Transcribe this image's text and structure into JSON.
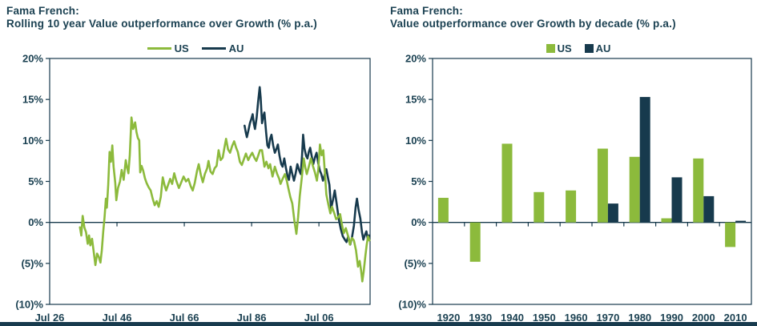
{
  "colors": {
    "us_green": "#8cba3c",
    "au_navy": "#173a4d",
    "text_navy": "#1b4152",
    "frame": "#173a4d",
    "strip": "#173a4d"
  },
  "charts": [
    {
      "title_line1": "Fama French:",
      "title_line2": "Rolling 10 year Value outperformance over Growth (% p.a.)",
      "legend": [
        {
          "name": "US"
        },
        {
          "name": "AU"
        }
      ]
    },
    {
      "title_line1": "Fama French:",
      "title_line2": "Value outperformance over Growth by decade (% p.a.)",
      "legend": [
        {
          "name": "US"
        },
        {
          "name": "AU"
        }
      ]
    }
  ],
  "chart_data": [
    {
      "type": "line",
      "title": "Fama French: Rolling 10 year Value outperformance over Growth (% p.a.)",
      "ylabel": "% p.a.",
      "ylim": [
        -10,
        20
      ],
      "y_ticks": {
        "labels": [
          "20%",
          "15%",
          "10%",
          "5%",
          "0%",
          "(5)%",
          "(10)%"
        ],
        "values": [
          20,
          15,
          10,
          5,
          0,
          -5,
          -10
        ]
      },
      "x_range": [
        1926.5,
        2021.7
      ],
      "x_ticks": {
        "labels": [
          "Jul 26",
          "Jul 46",
          "Jul 66",
          "Jul 86",
          "Jul 06"
        ],
        "years": [
          1926.5,
          1946.5,
          1966.5,
          1986.5,
          2006.5
        ]
      },
      "grid": false,
      "legend_position": "top",
      "series": [
        {
          "name": "AU",
          "color_key": "au_navy",
          "points": [
            [
              1984.4,
              11.8
            ],
            [
              1984.8,
              10.9
            ],
            [
              1985.1,
              10.4
            ],
            [
              1985.6,
              11.3
            ],
            [
              1986.0,
              12.1
            ],
            [
              1986.4,
              12.6
            ],
            [
              1986.8,
              13.2
            ],
            [
              1987.2,
              12.0
            ],
            [
              1987.5,
              11.4
            ],
            [
              1988.0,
              12.8
            ],
            [
              1988.4,
              14.6
            ],
            [
              1988.9,
              16.5
            ],
            [
              1989.2,
              15.2
            ],
            [
              1989.6,
              12.1
            ],
            [
              1990.0,
              13.0
            ],
            [
              1990.3,
              13.4
            ],
            [
              1990.8,
              11.0
            ],
            [
              1991.2,
              9.4
            ],
            [
              1991.6,
              9.1
            ],
            [
              1992.0,
              10.2
            ],
            [
              1992.4,
              10.7
            ],
            [
              1992.9,
              9.4
            ],
            [
              1993.4,
              8.5
            ],
            [
              1993.9,
              9.0
            ],
            [
              1994.3,
              9.5
            ],
            [
              1994.8,
              8.1
            ],
            [
              1995.3,
              7.1
            ],
            [
              1995.7,
              6.8
            ],
            [
              1996.2,
              7.8
            ],
            [
              1996.7,
              6.6
            ],
            [
              1997.2,
              5.6
            ],
            [
              1997.6,
              5.2
            ],
            [
              1998.1,
              6.8
            ],
            [
              1998.6,
              5.9
            ],
            [
              1999.1,
              5.1
            ],
            [
              1999.6,
              6.0
            ],
            [
              2000.1,
              7.1
            ],
            [
              2000.6,
              6.4
            ],
            [
              2001.1,
              5.9
            ],
            [
              2001.5,
              8.2
            ],
            [
              2001.8,
              10.7
            ],
            [
              2002.2,
              9.0
            ],
            [
              2002.7,
              8.1
            ],
            [
              2003.1,
              7.8
            ],
            [
              2003.5,
              8.6
            ],
            [
              2003.9,
              9.1
            ],
            [
              2004.4,
              8.0
            ],
            [
              2004.8,
              7.1
            ],
            [
              2005.3,
              7.9
            ],
            [
              2005.8,
              8.5
            ],
            [
              2006.3,
              7.2
            ],
            [
              2006.8,
              6.3
            ],
            [
              2007.2,
              5.9
            ],
            [
              2007.7,
              5.1
            ],
            [
              2008.2,
              5.8
            ],
            [
              2008.7,
              6.5
            ],
            [
              2009.2,
              5.4
            ],
            [
              2009.6,
              4.6
            ],
            [
              2010.1,
              1.7
            ],
            [
              2010.7,
              2.8
            ],
            [
              2011.2,
              3.9
            ],
            [
              2011.8,
              2.2
            ],
            [
              2012.4,
              0.4
            ],
            [
              2013.0,
              -0.8
            ],
            [
              2013.6,
              -1.7
            ],
            [
              2014.2,
              -2.1
            ],
            [
              2014.7,
              -2.4
            ],
            [
              2015.2,
              -1.7
            ],
            [
              2015.8,
              -2.7
            ],
            [
              2016.3,
              -1.9
            ],
            [
              2016.9,
              -0.4
            ],
            [
              2017.4,
              1.8
            ],
            [
              2017.8,
              2.9
            ],
            [
              2018.3,
              1.5
            ],
            [
              2018.8,
              0.5
            ],
            [
              2019.3,
              -1.2
            ],
            [
              2019.7,
              -2.1
            ],
            [
              2020.2,
              -1.5
            ],
            [
              2020.6,
              -1.1
            ],
            [
              2021.0,
              -2.0
            ],
            [
              2021.4,
              -1.6
            ]
          ]
        },
        {
          "name": "US",
          "color_key": "us_green",
          "points": [
            [
              1935.5,
              -0.6
            ],
            [
              1935.9,
              -1.6
            ],
            [
              1936.3,
              0.8
            ],
            [
              1936.8,
              -0.6
            ],
            [
              1937.3,
              -1.2
            ],
            [
              1937.8,
              -2.6
            ],
            [
              1938.2,
              -1.6
            ],
            [
              1938.6,
              -2.8
            ],
            [
              1939.1,
              -2.0
            ],
            [
              1939.6,
              -3.6
            ],
            [
              1940.1,
              -5.2
            ],
            [
              1940.6,
              -3.8
            ],
            [
              1941.1,
              -4.2
            ],
            [
              1941.6,
              -4.9
            ],
            [
              1942.0,
              -3.4
            ],
            [
              1942.4,
              -1.2
            ],
            [
              1942.8,
              0.6
            ],
            [
              1943.2,
              2.9
            ],
            [
              1943.5,
              1.8
            ],
            [
              1943.9,
              4.6
            ],
            [
              1944.3,
              8.6
            ],
            [
              1944.7,
              7.4
            ],
            [
              1945.1,
              9.4
            ],
            [
              1945.5,
              6.8
            ],
            [
              1946.0,
              4.8
            ],
            [
              1946.3,
              2.7
            ],
            [
              1946.8,
              4.2
            ],
            [
              1947.4,
              5.0
            ],
            [
              1947.9,
              6.4
            ],
            [
              1948.5,
              5.2
            ],
            [
              1949.1,
              7.6
            ],
            [
              1949.5,
              6.7
            ],
            [
              1949.9,
              6.0
            ],
            [
              1950.3,
              8.2
            ],
            [
              1950.8,
              12.8
            ],
            [
              1951.3,
              11.4
            ],
            [
              1951.9,
              12.2
            ],
            [
              1952.3,
              11.0
            ],
            [
              1952.7,
              10.3
            ],
            [
              1953.1,
              10.0
            ],
            [
              1953.4,
              6.1
            ],
            [
              1953.8,
              6.9
            ],
            [
              1954.3,
              6.3
            ],
            [
              1954.8,
              5.4
            ],
            [
              1955.3,
              4.8
            ],
            [
              1955.9,
              4.3
            ],
            [
              1956.5,
              3.9
            ],
            [
              1957.1,
              2.9
            ],
            [
              1957.7,
              2.1
            ],
            [
              1958.3,
              2.6
            ],
            [
              1958.9,
              1.9
            ],
            [
              1959.5,
              3.1
            ],
            [
              1960.1,
              5.5
            ],
            [
              1960.6,
              4.6
            ],
            [
              1961.1,
              3.9
            ],
            [
              1961.7,
              4.6
            ],
            [
              1962.3,
              5.3
            ],
            [
              1962.9,
              4.7
            ],
            [
              1963.5,
              6.0
            ],
            [
              1964.1,
              5.1
            ],
            [
              1964.9,
              4.2
            ],
            [
              1965.6,
              4.9
            ],
            [
              1966.3,
              5.6
            ],
            [
              1967.0,
              5.0
            ],
            [
              1967.7,
              5.3
            ],
            [
              1968.4,
              4.4
            ],
            [
              1969.0,
              3.9
            ],
            [
              1969.6,
              4.8
            ],
            [
              1970.3,
              6.3
            ],
            [
              1970.8,
              7.1
            ],
            [
              1971.4,
              5.8
            ],
            [
              1972.0,
              4.9
            ],
            [
              1972.6,
              5.9
            ],
            [
              1973.3,
              6.6
            ],
            [
              1973.7,
              7.5
            ],
            [
              1974.3,
              6.2
            ],
            [
              1974.9,
              5.9
            ],
            [
              1975.5,
              6.6
            ],
            [
              1976.1,
              6.9
            ],
            [
              1976.7,
              8.8
            ],
            [
              1977.3,
              7.6
            ],
            [
              1977.9,
              7.9
            ],
            [
              1978.5,
              9.3
            ],
            [
              1978.9,
              10.2
            ],
            [
              1979.5,
              8.9
            ],
            [
              1980.1,
              8.5
            ],
            [
              1980.7,
              9.3
            ],
            [
              1981.3,
              9.9
            ],
            [
              1981.9,
              9.1
            ],
            [
              1982.4,
              8.6
            ],
            [
              1983.0,
              7.4
            ],
            [
              1983.6,
              7.0
            ],
            [
              1984.2,
              7.7
            ],
            [
              1984.8,
              8.4
            ],
            [
              1985.5,
              7.6
            ],
            [
              1986.1,
              8.1
            ],
            [
              1986.7,
              8.5
            ],
            [
              1987.3,
              7.9
            ],
            [
              1987.9,
              7.5
            ],
            [
              1988.5,
              8.2
            ],
            [
              1989.0,
              8.8
            ],
            [
              1989.6,
              8.8
            ],
            [
              1990.3,
              6.8
            ],
            [
              1990.9,
              7.4
            ],
            [
              1991.5,
              6.6
            ],
            [
              1992.0,
              7.1
            ],
            [
              1992.7,
              5.6
            ],
            [
              1993.4,
              6.8
            ],
            [
              1994.1,
              5.9
            ],
            [
              1994.7,
              5.3
            ],
            [
              1995.1,
              4.7
            ],
            [
              1995.8,
              5.4
            ],
            [
              1996.4,
              5.9
            ],
            [
              1997.0,
              5.0
            ],
            [
              1997.4,
              4.2
            ],
            [
              1998.0,
              3.1
            ],
            [
              1998.6,
              2.3
            ],
            [
              1999.2,
              0.2
            ],
            [
              1999.8,
              -1.4
            ],
            [
              2000.3,
              0.6
            ],
            [
              2000.8,
              3.2
            ],
            [
              2001.4,
              5.4
            ],
            [
              2002.0,
              7.8
            ],
            [
              2002.5,
              6.6
            ],
            [
              2002.9,
              5.9
            ],
            [
              2003.5,
              6.8
            ],
            [
              2004.1,
              7.8
            ],
            [
              2004.7,
              6.9
            ],
            [
              2005.3,
              6.1
            ],
            [
              2005.9,
              5.1
            ],
            [
              2006.3,
              6.4
            ],
            [
              2006.8,
              9.5
            ],
            [
              2007.3,
              8.2
            ],
            [
              2007.8,
              8.8
            ],
            [
              2008.3,
              5.9
            ],
            [
              2008.7,
              3.4
            ],
            [
              2009.3,
              2.2
            ],
            [
              2009.9,
              1.1
            ],
            [
              2010.4,
              1.9
            ],
            [
              2011.0,
              1.2
            ],
            [
              2011.6,
              0.4
            ],
            [
              2012.2,
              0.6
            ],
            [
              2012.8,
              1.0
            ],
            [
              2013.4,
              -0.4
            ],
            [
              2013.9,
              -1.3
            ],
            [
              2014.5,
              -0.7
            ],
            [
              2015.1,
              -1.6
            ],
            [
              2015.7,
              -2.7
            ],
            [
              2016.3,
              -1.9
            ],
            [
              2016.9,
              -2.2
            ],
            [
              2017.5,
              -3.4
            ],
            [
              2018.1,
              -5.4
            ],
            [
              2018.6,
              -4.7
            ],
            [
              2019.0,
              -5.8
            ],
            [
              2019.4,
              -7.2
            ],
            [
              2019.8,
              -6.0
            ],
            [
              2020.3,
              -4.1
            ],
            [
              2020.7,
              -2.7
            ],
            [
              2021.1,
              -1.7
            ],
            [
              2021.5,
              -2.2
            ]
          ]
        }
      ]
    },
    {
      "type": "bar",
      "title": "Fama French: Value outperformance over Growth by decade (% p.a.)",
      "ylabel": "% p.a.",
      "ylim": [
        -10,
        20
      ],
      "y_ticks": {
        "labels": [
          "20%",
          "15%",
          "10%",
          "5%",
          "0%",
          "(5)%",
          "(10)%"
        ],
        "values": [
          20,
          15,
          10,
          5,
          0,
          -5,
          -10
        ]
      },
      "categories": [
        "1920",
        "1930",
        "1940",
        "1950",
        "1960",
        "1970",
        "1980",
        "1990",
        "2000",
        "2010"
      ],
      "grid": false,
      "legend_position": "top",
      "series": [
        {
          "name": "US",
          "color_key": "us_green",
          "values": [
            3.0,
            -4.8,
            9.6,
            3.7,
            3.9,
            9.0,
            8.0,
            0.5,
            7.8,
            -3.0
          ]
        },
        {
          "name": "AU",
          "color_key": "au_navy",
          "values": [
            null,
            null,
            null,
            null,
            null,
            2.3,
            15.3,
            5.5,
            3.2,
            0.2
          ]
        }
      ]
    }
  ]
}
